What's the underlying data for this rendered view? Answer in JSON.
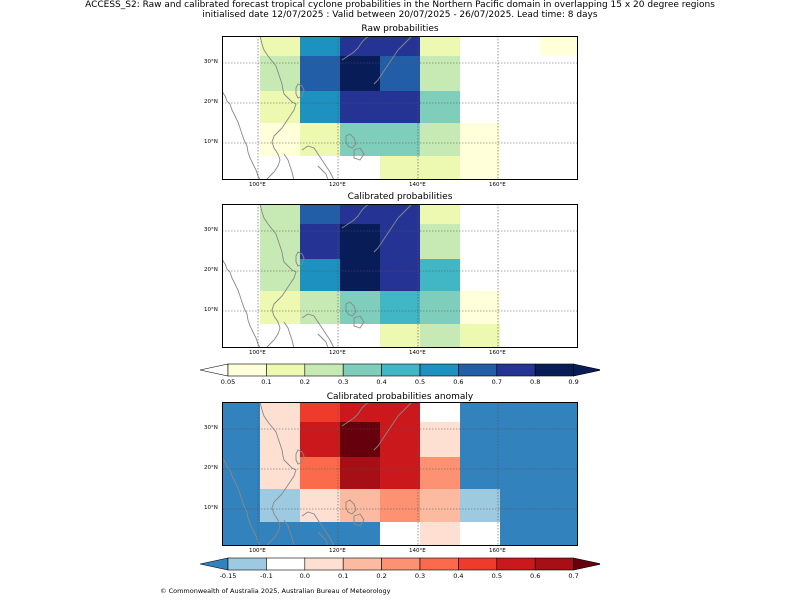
{
  "header": {
    "line1": "ACCESS_S2: Raw and calibrated forecast tropical cyclone probabilities in the Northern Pacific domain in overlapping 15 x 20 degree regions",
    "line2": "initialised date 12/07/2025 :  Valid between 20/07/2025 - 26/07/2025. Lead time: 8 days"
  },
  "panels": [
    {
      "title": "Raw probabilities"
    },
    {
      "title": "Calibrated probabilities"
    },
    {
      "title": "Calibrated probabilities anomaly"
    }
  ],
  "axes": {
    "lon_ticks": [
      "100°E",
      "120°E",
      "140°E",
      "160°E"
    ],
    "lat_ticks": [
      "30°N",
      "20°N",
      "10°N"
    ]
  },
  "prob_colorbar": {
    "labels": [
      "0.05",
      "0.1",
      "0.2",
      "0.3",
      "0.4",
      "0.5",
      "0.6",
      "0.7",
      "0.8",
      "0.9"
    ],
    "colors": [
      "#ffffd9",
      "#edf8b1",
      "#c7e9b4",
      "#7fcdbb",
      "#41b6c4",
      "#1d91c0",
      "#225ea8",
      "#253494",
      "#081d58"
    ],
    "under": "#ffffff",
    "over": "#081d58"
  },
  "anom_colorbar": {
    "labels": [
      "-0.15",
      "-0.1",
      "0.0",
      "0.1",
      "0.2",
      "0.3",
      "0.4",
      "0.5",
      "0.6",
      "0.7"
    ],
    "colors": [
      "#9ecae1",
      "#ffffff",
      "#fee0d2",
      "#fcbba1",
      "#fc9272",
      "#fb6a4a",
      "#ef3b2c",
      "#cb181d",
      "#a50f15"
    ],
    "under": "#3182bd",
    "over": "#67000d"
  },
  "footer": {
    "copyright": "© Commonwealth of Australia 2025, Australian Bureau of Meteorology"
  }
}
